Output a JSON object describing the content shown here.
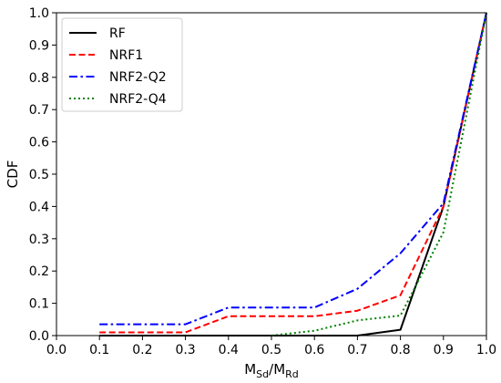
{
  "chart_data": {
    "type": "line",
    "xlabel_main": "M",
    "xlabel_sub1": "Sd",
    "xlabel_sep": "/M",
    "xlabel_sub2": "Rd",
    "ylabel": "CDF",
    "xlim": [
      0.0,
      1.0
    ],
    "ylim": [
      0.0,
      1.0
    ],
    "xticks": [
      "0.0",
      "0.1",
      "0.2",
      "0.3",
      "0.4",
      "0.5",
      "0.6",
      "0.7",
      "0.8",
      "0.9",
      "1.0"
    ],
    "yticks": [
      "0.0",
      "0.1",
      "0.2",
      "0.3",
      "0.4",
      "0.5",
      "0.6",
      "0.7",
      "0.8",
      "0.9",
      "1.0"
    ],
    "grid": false,
    "legend_position": "top-left",
    "series": [
      {
        "name": "RF",
        "color": "#000000",
        "style": "solid",
        "x": [
          0.1,
          0.2,
          0.3,
          0.4,
          0.5,
          0.6,
          0.7,
          0.8,
          0.9,
          1.0
        ],
        "y": [
          0.0,
          0.0,
          0.0,
          0.0,
          0.0,
          0.0,
          0.0,
          0.018,
          0.4,
          1.0
        ]
      },
      {
        "name": "NRF1",
        "color": "#ff0000",
        "style": "dashed",
        "x": [
          0.1,
          0.2,
          0.3,
          0.4,
          0.5,
          0.6,
          0.7,
          0.8,
          0.9,
          1.0
        ],
        "y": [
          0.01,
          0.01,
          0.01,
          0.06,
          0.06,
          0.06,
          0.077,
          0.125,
          0.4,
          1.0
        ]
      },
      {
        "name": "NRF2-Q2",
        "color": "#0000ff",
        "style": "dashdot",
        "x": [
          0.1,
          0.2,
          0.3,
          0.4,
          0.5,
          0.6,
          0.7,
          0.8,
          0.9,
          1.0
        ],
        "y": [
          0.035,
          0.035,
          0.035,
          0.087,
          0.087,
          0.087,
          0.145,
          0.255,
          0.41,
          1.0
        ]
      },
      {
        "name": "NRF2-Q4",
        "color": "#008000",
        "style": "dotted",
        "x": [
          0.5,
          0.6,
          0.7,
          0.8,
          0.9,
          1.0
        ],
        "y": [
          0.0,
          0.015,
          0.047,
          0.062,
          0.32,
          1.0
        ]
      }
    ]
  }
}
